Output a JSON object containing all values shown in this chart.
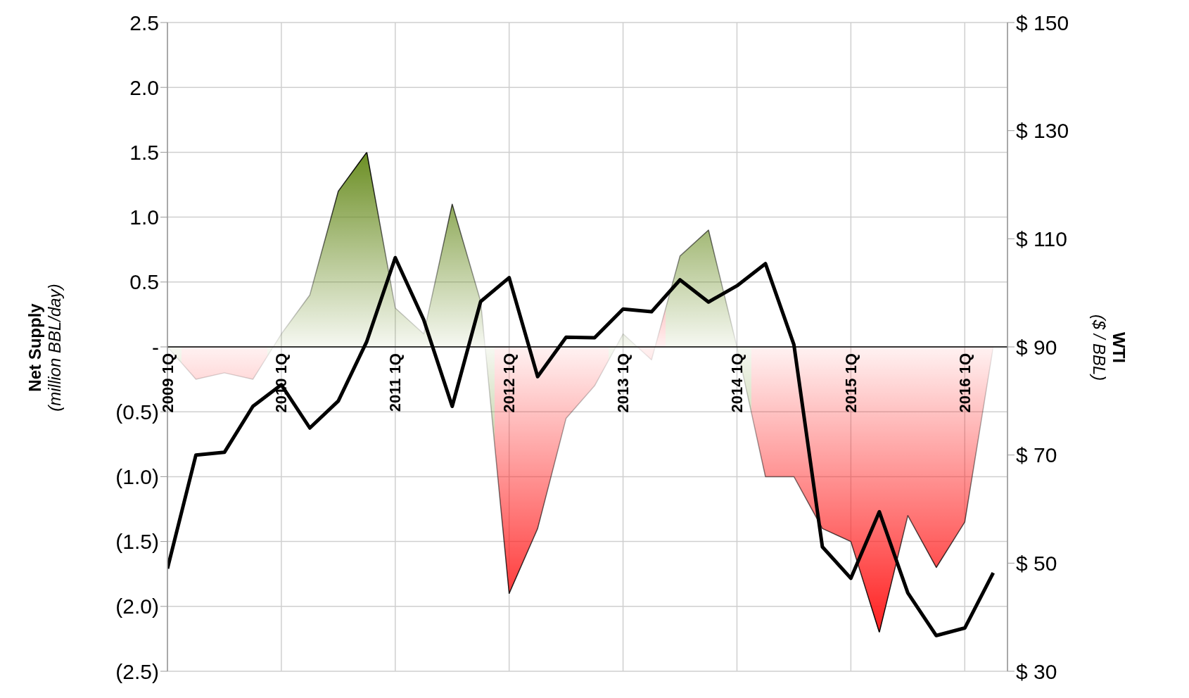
{
  "chart_data": {
    "type": "area",
    "categories": [
      "2009 1Q",
      null,
      null,
      null,
      "2010 1Q",
      null,
      null,
      null,
      "2011 1Q",
      null,
      null,
      null,
      "2012 1Q",
      null,
      null,
      null,
      "2013 1Q",
      null,
      null,
      null,
      "2014 1Q",
      null,
      null,
      null,
      "2015 1Q",
      null,
      null,
      null,
      "2016 1Q",
      null
    ],
    "series": [
      {
        "color": "#000000",
        "colors": [
          "#6b8e23",
          "#ff2020",
          "#ff2020",
          "#ff2020",
          "#6b8e23",
          "#6b8e23",
          "#6b8e23",
          "#6b8e23",
          "#6b8e23",
          "#6b8e23",
          "#6b8e23",
          "#6b8e23",
          "#ff2020",
          "#ff2020",
          "#ff2020",
          "#ff2020",
          "#6b8e23",
          "#ff2020",
          "#6b8e23",
          "#6b8e23",
          "#6b8e23",
          "#ff2020",
          "#ff2020",
          "#ff2020",
          "#ff2020",
          "#ff2020",
          "#ff2020",
          "#ff2020",
          "#ff2020",
          "#ff2020"
        ],
        "values": [
          0,
          -0.25,
          -0.2,
          -0.25,
          0.1,
          0.4,
          1.2,
          1.5,
          0.3,
          0.1,
          1.1,
          0.35,
          -1.9,
          -1.4,
          -0.55,
          -0.3,
          0.1,
          -0.1,
          0.7,
          0.9,
          0,
          -1.0,
          -1.0,
          -1.4,
          -1.5,
          -2.2,
          -1.3,
          -1.7,
          -1.35,
          0
        ]
      },
      {
        "type": "line",
        "axis": "y2",
        "color": "#000000",
        "values": [
          49,
          70,
          70.5,
          79,
          83,
          75,
          80,
          91,
          106.5,
          95,
          79,
          98.4,
          102.8,
          84.5,
          91.8,
          91.7,
          97,
          96.5,
          102.4,
          98.3,
          101.3,
          105.4,
          90.4,
          53,
          47.2,
          59.5,
          44.5,
          36.6,
          38,
          48.2
        ]
      }
    ],
    "ylabel": "Net Supply\n(million BBL/day)",
    "y2label": "WTI\n($ / BBL)",
    "ylim": [
      -2.5,
      2.5
    ],
    "yticks": [
      {
        "value": -2.5,
        "label": "(2.5)"
      },
      {
        "value": -2,
        "label": "(2.0)"
      },
      {
        "value": -1.5,
        "label": "(1.5)"
      },
      {
        "value": -1,
        "label": "(1.0)"
      },
      {
        "value": -0.5,
        "label": "(0.5)"
      },
      {
        "value": 0,
        "label": "-"
      },
      {
        "value": 0.5,
        "label": "0.5"
      },
      {
        "value": 1,
        "label": "1.0"
      },
      {
        "value": 1.5,
        "label": "1.5"
      },
      {
        "value": 2,
        "label": "2.0"
      },
      {
        "value": 2.5,
        "label": "2.5"
      }
    ],
    "y2lim": [
      30,
      150
    ],
    "y2ticks": [
      {
        "value": 30,
        "label": "$ 30"
      },
      {
        "value": 50,
        "label": "$ 50"
      },
      {
        "value": 70,
        "label": "$ 70"
      },
      {
        "value": 90,
        "label": "$ 90"
      },
      {
        "value": 110,
        "label": "$ 110"
      },
      {
        "value": 130,
        "label": "$ 130"
      },
      {
        "value": 150,
        "label": "$ 150"
      }
    ],
    "grid": true,
    "legend": false,
    "marker": "none",
    "line_style": "solid"
  }
}
